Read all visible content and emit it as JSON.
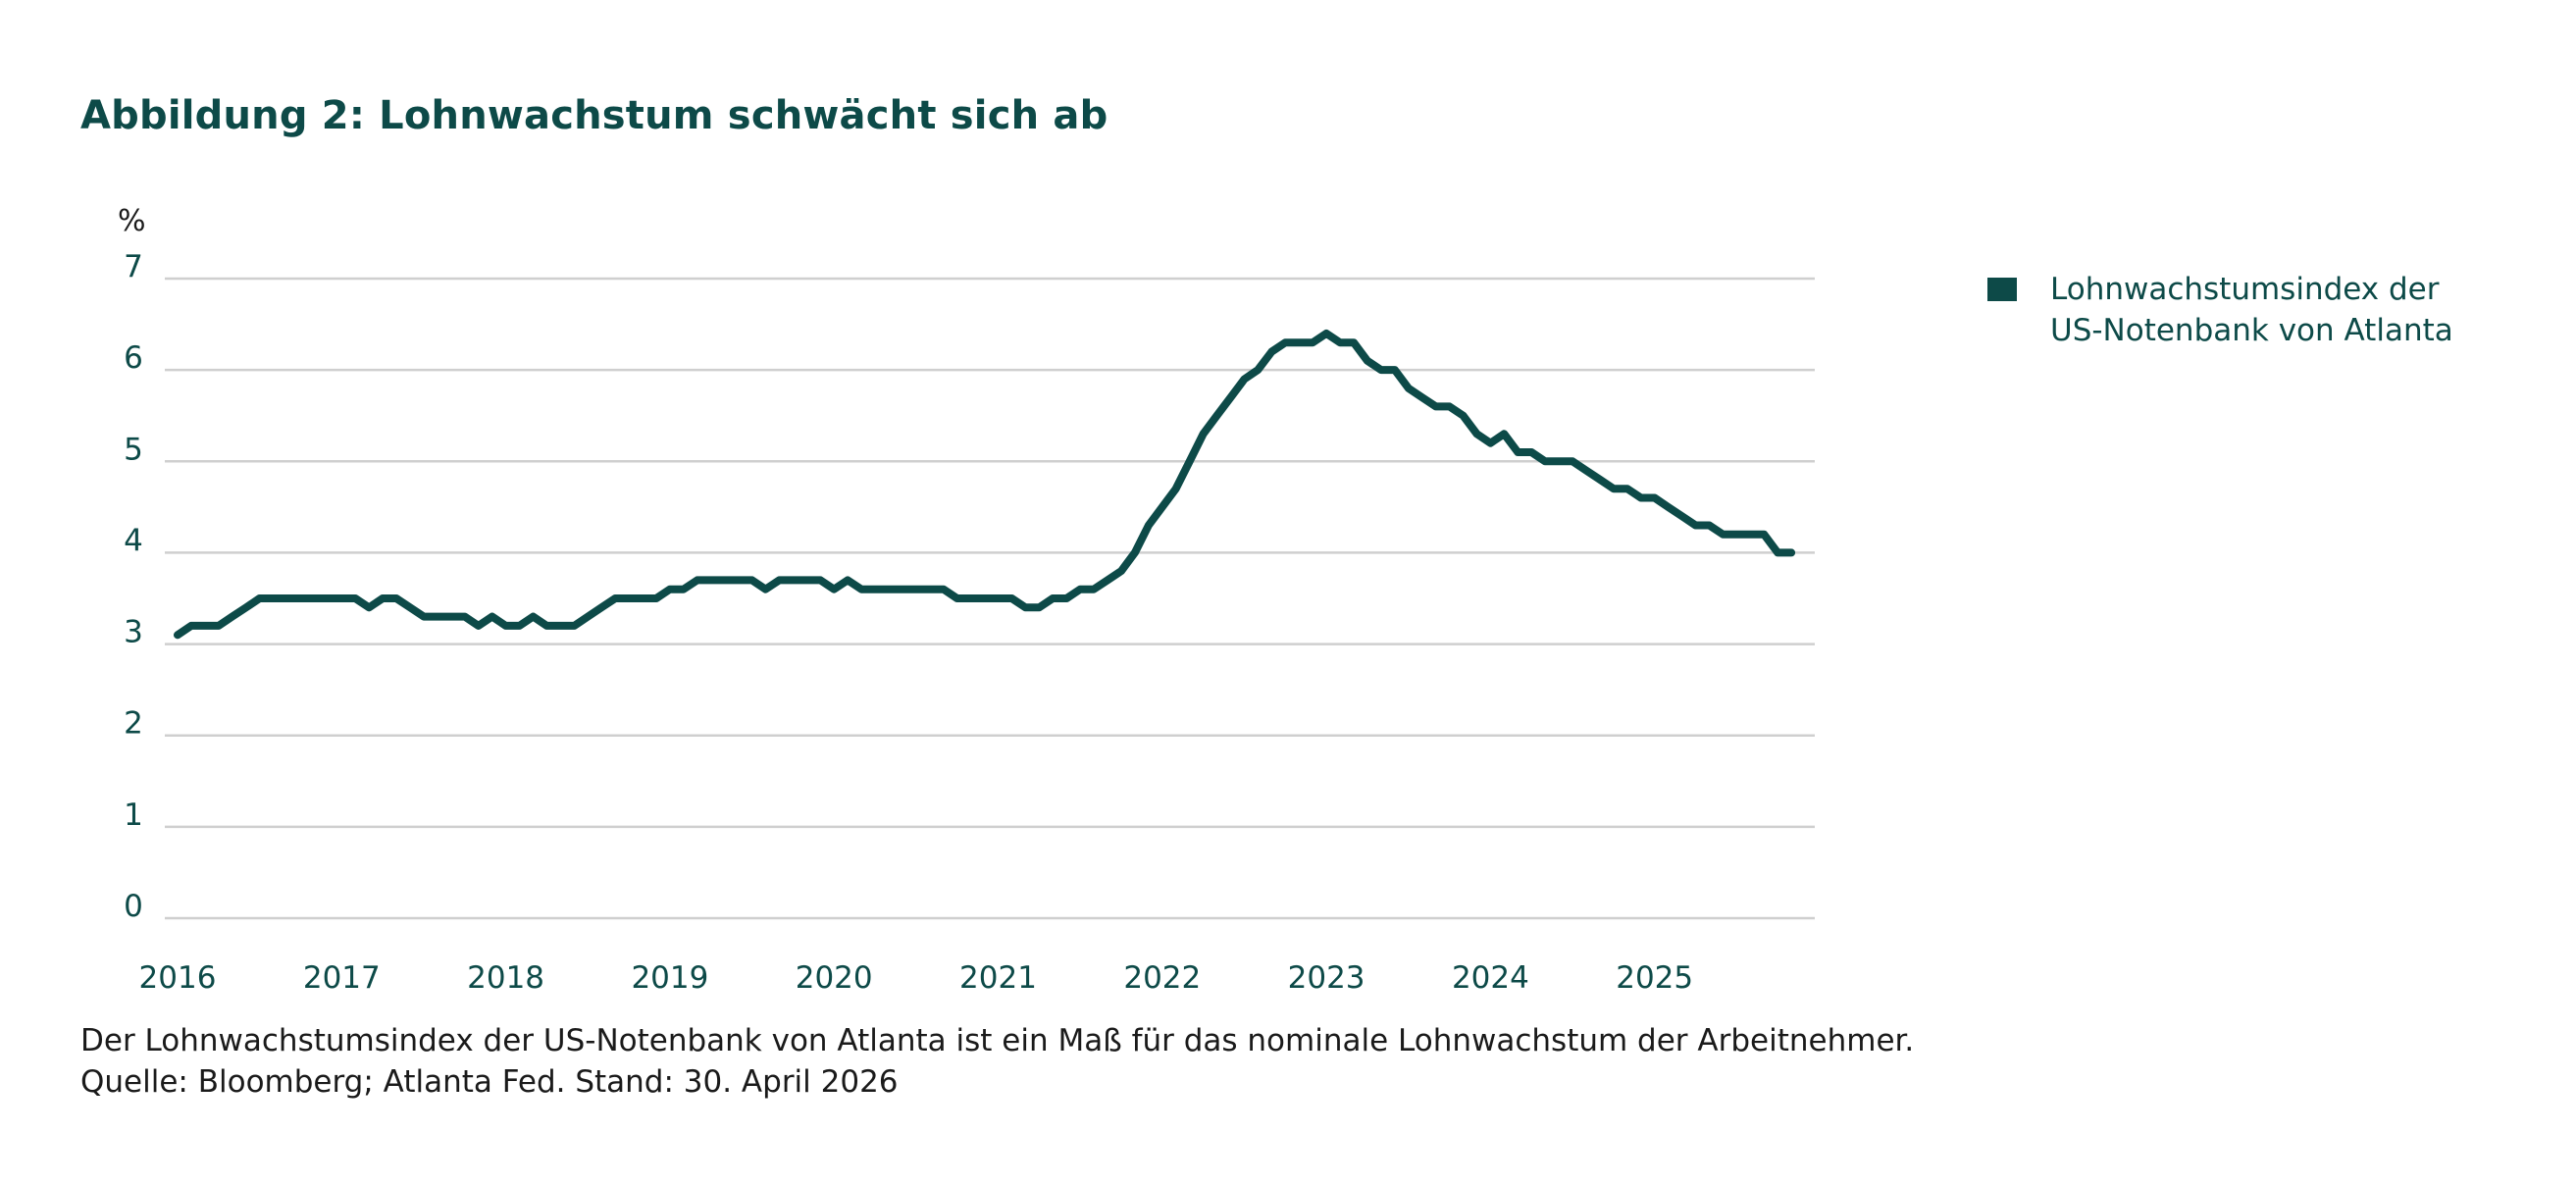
{
  "title": "Abbildung 2: Lohnwachstum schwächt sich ab",
  "footnote": "Der Lohnwachstumsindex der US-Notenbank von Atlanta ist ein Maß für das nominale Lohnwachstum der Arbeitnehmer.",
  "source": "Quelle: Bloomberg; Atlanta Fed. Stand: 30. April 2026",
  "legend": {
    "line1": "Lohnwachstumsindex der",
    "line2": "US-Notenbank von Atlanta"
  },
  "colors": {
    "series": "#0d4a48",
    "text": "#0d4a48",
    "grid": "#cfcfcf"
  },
  "chart_data": {
    "type": "line",
    "title": "Abbildung 2: Lohnwachstum schwächt sich ab",
    "ylabel": "%",
    "xlabel": "",
    "ylim": [
      0,
      7
    ],
    "yticks": [
      0,
      1,
      2,
      3,
      4,
      5,
      6,
      7
    ],
    "xlim": [
      2016,
      2026
    ],
    "xticks": [
      2016,
      2017,
      2018,
      2019,
      2020,
      2021,
      2022,
      2023,
      2024,
      2025
    ],
    "grid": true,
    "legend_position": "top-right",
    "series": [
      {
        "name": "Lohnwachstumsindex der US-Notenbank von Atlanta",
        "x": [
          2016.0,
          2016.083,
          2016.167,
          2016.25,
          2016.333,
          2016.417,
          2016.5,
          2016.583,
          2016.667,
          2016.75,
          2016.833,
          2016.917,
          2017.0,
          2017.083,
          2017.167,
          2017.25,
          2017.333,
          2017.417,
          2017.5,
          2017.583,
          2017.667,
          2017.75,
          2017.833,
          2017.917,
          2018.0,
          2018.083,
          2018.167,
          2018.25,
          2018.333,
          2018.417,
          2018.5,
          2018.583,
          2018.667,
          2018.75,
          2018.833,
          2018.917,
          2019.0,
          2019.083,
          2019.167,
          2019.25,
          2019.333,
          2019.417,
          2019.5,
          2019.583,
          2019.667,
          2019.75,
          2019.833,
          2019.917,
          2020.0,
          2020.083,
          2020.167,
          2020.25,
          2020.333,
          2020.417,
          2020.5,
          2020.583,
          2020.667,
          2020.75,
          2020.833,
          2020.917,
          2021.0,
          2021.083,
          2021.167,
          2021.25,
          2021.333,
          2021.417,
          2021.5,
          2021.583,
          2021.667,
          2021.75,
          2021.833,
          2021.917,
          2022.0,
          2022.083,
          2022.167,
          2022.25,
          2022.333,
          2022.417,
          2022.5,
          2022.583,
          2022.667,
          2022.75,
          2022.833,
          2022.917,
          2023.0,
          2023.083,
          2023.167,
          2023.25,
          2023.333,
          2023.417,
          2023.5,
          2023.583,
          2023.667,
          2023.75,
          2023.833,
          2023.917,
          2024.0,
          2024.083,
          2024.167,
          2024.25,
          2024.333,
          2024.417,
          2024.5,
          2024.583,
          2024.667,
          2024.75,
          2024.833,
          2024.917,
          2025.0,
          2025.083,
          2025.167,
          2025.25,
          2025.333,
          2025.417,
          2025.5,
          2025.583,
          2025.667,
          2025.75,
          2025.833
        ],
        "values": [
          3.1,
          3.2,
          3.2,
          3.2,
          3.3,
          3.4,
          3.5,
          3.5,
          3.5,
          3.5,
          3.5,
          3.5,
          3.5,
          3.5,
          3.4,
          3.5,
          3.5,
          3.4,
          3.3,
          3.3,
          3.3,
          3.3,
          3.2,
          3.3,
          3.2,
          3.2,
          3.3,
          3.2,
          3.2,
          3.2,
          3.3,
          3.4,
          3.5,
          3.5,
          3.5,
          3.5,
          3.6,
          3.6,
          3.7,
          3.7,
          3.7,
          3.7,
          3.7,
          3.6,
          3.7,
          3.7,
          3.7,
          3.7,
          3.6,
          3.7,
          3.6,
          3.6,
          3.6,
          3.6,
          3.6,
          3.6,
          3.6,
          3.5,
          3.5,
          3.5,
          3.5,
          3.5,
          3.4,
          3.4,
          3.5,
          3.5,
          3.6,
          3.6,
          3.7,
          3.8,
          4.0,
          4.3,
          4.5,
          4.7,
          5.0,
          5.3,
          5.5,
          5.7,
          5.9,
          6.0,
          6.2,
          6.3,
          6.3,
          6.3,
          6.4,
          6.3,
          6.3,
          6.1,
          6.0,
          6.0,
          5.8,
          5.7,
          5.6,
          5.6,
          5.5,
          5.3,
          5.2,
          5.3,
          5.1,
          5.1,
          5.0,
          5.0,
          5.0,
          4.9,
          4.8,
          4.7,
          4.7,
          4.6,
          4.6,
          4.5,
          4.4,
          4.3,
          4.3,
          4.2,
          4.2,
          4.2,
          4.2,
          4.0,
          4.0
        ]
      }
    ]
  }
}
